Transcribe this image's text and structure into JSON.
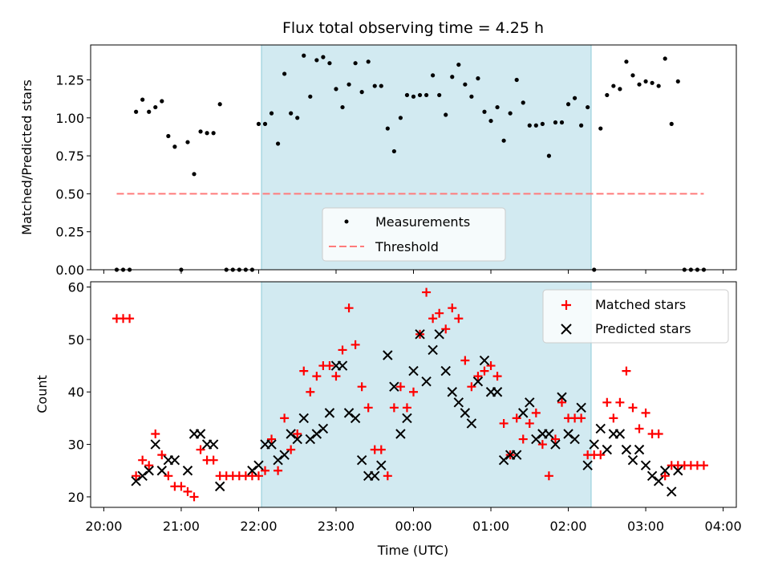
{
  "chart_data": [
    {
      "type": "scatter",
      "title": "Flux total observing time = 4.25 h",
      "ylabel": "Matched/Predicted stars",
      "ylim": [
        0,
        1.48
      ],
      "xlim_hours": [
        19.83,
        28.17
      ],
      "yticks": [
        0.0,
        0.25,
        0.5,
        0.75,
        1.0,
        1.25
      ],
      "ytick_labels": [
        "0.00",
        "0.25",
        "0.50",
        "0.75",
        "1.00",
        "1.25"
      ],
      "shaded_region": {
        "x": [
          "22:00",
          "02:15"
        ],
        "color": "#add8e6"
      },
      "legend": {
        "location": "lower-center",
        "entries": [
          {
            "label": "Measurements",
            "marker": "dot",
            "color": "#000000"
          },
          {
            "label": "Threshold",
            "marker": "dashed-line",
            "color": "#ff7b7b"
          }
        ]
      },
      "series": [
        {
          "name": "Measurements",
          "color": "#000000",
          "x": [
            "20:10",
            "20:15",
            "20:20",
            "20:25",
            "20:30",
            "20:35",
            "20:40",
            "20:45",
            "20:50",
            "20:55",
            "21:00",
            "21:05",
            "21:10",
            "21:15",
            "21:20",
            "21:25",
            "21:30",
            "21:35",
            "21:40",
            "21:45",
            "21:50",
            "21:55",
            "22:00",
            "22:05",
            "22:10",
            "22:15",
            "22:20",
            "22:25",
            "22:30",
            "22:35",
            "22:40",
            "22:45",
            "22:50",
            "22:55",
            "23:00",
            "23:05",
            "23:10",
            "23:15",
            "23:20",
            "23:25",
            "23:30",
            "23:35",
            "23:40",
            "23:45",
            "23:50",
            "23:55",
            "00:00",
            "00:05",
            "00:10",
            "00:15",
            "00:20",
            "00:25",
            "00:30",
            "00:35",
            "00:40",
            "00:45",
            "00:50",
            "00:55",
            "01:00",
            "01:05",
            "01:10",
            "01:15",
            "01:20",
            "01:25",
            "01:30",
            "01:35",
            "01:40",
            "01:45",
            "01:50",
            "01:55",
            "02:00",
            "02:05",
            "02:10",
            "02:15",
            "02:20",
            "02:25",
            "02:30",
            "02:35",
            "02:40",
            "02:45",
            "02:50",
            "02:55",
            "03:00",
            "03:05",
            "03:10",
            "03:15",
            "03:20",
            "03:25",
            "03:30",
            "03:35",
            "03:40",
            "03:45"
          ],
          "y": [
            0,
            0,
            0,
            1.04,
            1.12,
            1.04,
            1.07,
            1.11,
            0.88,
            0.81,
            0,
            0.84,
            0.63,
            0.91,
            0.9,
            0.9,
            1.09,
            0,
            0,
            0,
            0,
            0,
            0.96,
            0.96,
            1.03,
            0.83,
            1.29,
            1.03,
            1.0,
            1.41,
            1.14,
            1.38,
            1.4,
            1.36,
            1.19,
            1.07,
            1.22,
            1.36,
            1.17,
            1.37,
            1.21,
            1.21,
            0.93,
            0.78,
            1.0,
            1.15,
            1.14,
            1.15,
            1.15,
            1.28,
            1.15,
            1.02,
            1.27,
            1.35,
            1.22,
            1.14,
            1.26,
            1.04,
            0.98,
            1.07,
            0.85,
            1.03,
            1.25,
            1.1,
            0.95,
            0.95,
            0.96,
            0.75,
            0.97,
            0.97,
            1.09,
            1.13,
            0.95,
            1.07,
            0,
            0.93,
            1.15,
            1.21,
            1.19,
            1.37,
            1.28,
            1.22,
            1.24,
            1.23,
            1.21,
            1.39,
            0.96,
            1.24,
            0,
            0,
            0,
            0
          ]
        },
        {
          "name": "Threshold",
          "color": "#ff7b7b",
          "x": [
            "20:10",
            "03:45"
          ],
          "y": [
            0.5,
            0.5
          ]
        }
      ]
    },
    {
      "type": "scatter",
      "xlabel": "Time (UTC)",
      "ylabel": "Count",
      "ylim": [
        18,
        61
      ],
      "xlim_hours": [
        19.83,
        28.17
      ],
      "yticks": [
        20,
        30,
        40,
        50,
        60
      ],
      "ytick_labels": [
        "20",
        "30",
        "40",
        "50",
        "60"
      ],
      "xtick_labels": [
        "20:00",
        "21:00",
        "22:00",
        "23:00",
        "00:00",
        "01:00",
        "02:00",
        "03:00",
        "04:00"
      ],
      "shaded_region": {
        "x": [
          "22:00",
          "02:15"
        ],
        "color": "#add8e6"
      },
      "legend": {
        "location": "top-right",
        "entries": [
          {
            "label": "Matched stars",
            "marker": "plus",
            "color": "#ff0000"
          },
          {
            "label": "Predicted stars",
            "marker": "x",
            "color": "#000000"
          }
        ]
      },
      "series": [
        {
          "name": "Matched stars",
          "color": "#ff0000",
          "x": [
            "20:10",
            "20:15",
            "20:20",
            "20:25",
            "20:30",
            "20:35",
            "20:40",
            "20:45",
            "20:50",
            "20:55",
            "21:00",
            "21:05",
            "21:10",
            "21:15",
            "21:20",
            "21:25",
            "21:30",
            "21:35",
            "21:40",
            "21:45",
            "21:50",
            "21:55",
            "22:00",
            "22:05",
            "22:10",
            "22:15",
            "22:20",
            "22:25",
            "22:30",
            "22:35",
            "22:40",
            "22:45",
            "22:50",
            "22:55",
            "23:00",
            "23:05",
            "23:10",
            "23:15",
            "23:20",
            "23:25",
            "23:30",
            "23:35",
            "23:40",
            "23:45",
            "23:50",
            "23:55",
            "00:00",
            "00:05",
            "00:10",
            "00:15",
            "00:20",
            "00:25",
            "00:30",
            "00:35",
            "00:40",
            "00:45",
            "00:50",
            "00:55",
            "01:00",
            "01:05",
            "01:10",
            "01:15",
            "01:20",
            "01:25",
            "01:30",
            "01:35",
            "01:40",
            "01:45",
            "01:50",
            "01:55",
            "02:00",
            "02:05",
            "02:10",
            "02:15",
            "02:20",
            "02:25",
            "02:30",
            "02:35",
            "02:40",
            "02:45",
            "02:50",
            "02:55",
            "03:00",
            "03:05",
            "03:10",
            "03:15",
            "03:20",
            "03:25",
            "03:30",
            "03:35",
            "03:40",
            "03:45"
          ],
          "y": [
            54,
            54,
            54,
            24,
            27,
            26,
            32,
            28,
            24,
            22,
            22,
            21,
            20,
            29,
            27,
            27,
            24,
            24,
            24,
            24,
            24,
            24,
            24,
            25,
            31,
            25,
            35,
            29,
            32,
            44,
            40,
            43,
            45,
            45,
            43,
            48,
            56,
            49,
            41,
            37,
            29,
            29,
            24,
            37,
            41,
            37,
            40,
            51,
            59,
            54,
            55,
            52,
            56,
            54,
            46,
            41,
            43,
            44,
            45,
            43,
            34,
            28,
            35,
            31,
            34,
            36,
            30,
            24,
            31,
            38,
            35,
            35,
            35,
            28,
            28,
            28,
            38,
            35,
            38,
            44,
            37,
            33,
            36,
            32,
            32,
            24,
            26,
            26,
            26,
            26,
            26,
            26
          ]
        },
        {
          "name": "Predicted stars",
          "color": "#000000",
          "x": [
            "20:25",
            "20:30",
            "20:35",
            "20:40",
            "20:45",
            "20:50",
            "20:55",
            "21:05",
            "21:10",
            "21:15",
            "21:20",
            "21:25",
            "21:30",
            "21:55",
            "22:00",
            "22:05",
            "22:10",
            "22:15",
            "22:20",
            "22:25",
            "22:30",
            "22:35",
            "22:40",
            "22:45",
            "22:50",
            "22:55",
            "23:00",
            "23:05",
            "23:10",
            "23:15",
            "23:20",
            "23:25",
            "23:30",
            "23:35",
            "23:40",
            "23:45",
            "23:50",
            "23:55",
            "00:00",
            "00:05",
            "00:10",
            "00:15",
            "00:20",
            "00:25",
            "00:30",
            "00:35",
            "00:40",
            "00:45",
            "00:50",
            "00:55",
            "01:00",
            "01:05",
            "01:10",
            "01:15",
            "01:20",
            "01:25",
            "01:30",
            "01:35",
            "01:40",
            "01:45",
            "01:50",
            "01:55",
            "02:00",
            "02:05",
            "02:10",
            "02:15",
            "02:20",
            "02:25",
            "02:30",
            "02:35",
            "02:40",
            "02:45",
            "02:50",
            "02:55",
            "03:00",
            "03:05",
            "03:10",
            "03:15",
            "03:20",
            "03:25"
          ],
          "y": [
            23,
            24,
            25,
            30,
            25,
            27,
            27,
            25,
            32,
            32,
            30,
            30,
            22,
            25,
            26,
            30,
            30,
            27,
            28,
            32,
            31,
            35,
            31,
            32,
            33,
            36,
            45,
            45,
            36,
            35,
            27,
            24,
            24,
            26,
            47,
            41,
            32,
            35,
            44,
            51,
            42,
            48,
            51,
            44,
            40,
            38,
            36,
            34,
            42,
            46,
            40,
            40,
            27,
            28,
            28,
            36,
            38,
            31,
            32,
            32,
            30,
            39,
            32,
            31,
            37,
            26,
            30,
            33,
            29,
            32,
            32,
            29,
            27,
            29,
            26,
            24,
            23,
            25,
            21,
            25
          ]
        }
      ]
    }
  ]
}
